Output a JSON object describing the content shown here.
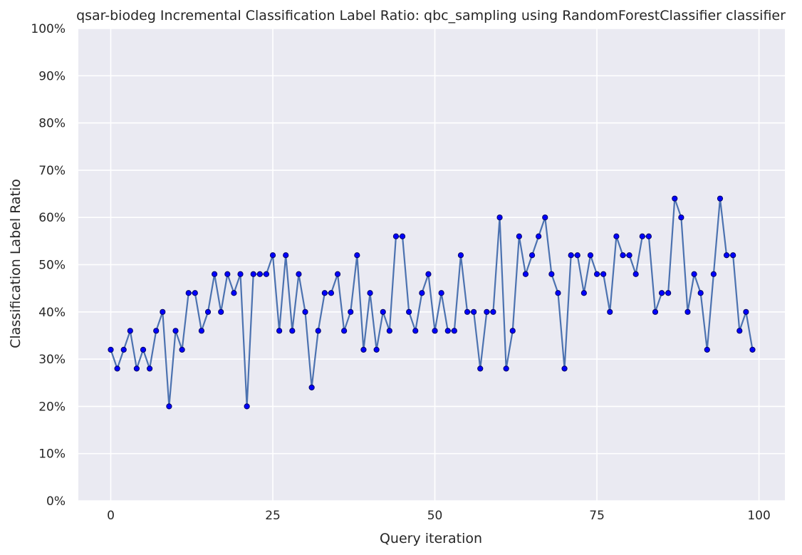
{
  "chart_data": {
    "type": "line",
    "title": "qsar-biodeg Incremental Classification Label Ratio: qbc_sampling using RandomForestClassifier classifier",
    "xlabel": "Query iteration",
    "ylabel": "Classification Label Ratio",
    "xlim": [
      -5,
      104
    ],
    "ylim": [
      0,
      100
    ],
    "x_ticks": [
      0,
      25,
      50,
      75,
      100
    ],
    "y_ticks": [
      0,
      10,
      20,
      30,
      40,
      50,
      60,
      70,
      80,
      90,
      100
    ],
    "y_tick_labels": [
      "0%",
      "10%",
      "20%",
      "30%",
      "40%",
      "50%",
      "60%",
      "70%",
      "80%",
      "90%",
      "100%"
    ],
    "grid": true,
    "background": "#eaeaf2",
    "series": [
      {
        "color": "#4c72b0",
        "marker_color": "#0000ff",
        "x_start": 0,
        "values": [
          32,
          28,
          32,
          36,
          28,
          32,
          28,
          36,
          40,
          20,
          36,
          32,
          44,
          44,
          36,
          40,
          48,
          40,
          48,
          44,
          48,
          20,
          48,
          48,
          48,
          52,
          36,
          52,
          36,
          48,
          40,
          24,
          36,
          44,
          44,
          48,
          36,
          40,
          52,
          32,
          44,
          32,
          40,
          36,
          56,
          56,
          40,
          36,
          44,
          48,
          36,
          44,
          36,
          36,
          52,
          40,
          40,
          28,
          40,
          40,
          60,
          28,
          36,
          56,
          48,
          52,
          56,
          60,
          48,
          44,
          28,
          52,
          52,
          44,
          52,
          48,
          48,
          40,
          56,
          52,
          52,
          48,
          56,
          56,
          40,
          44,
          44,
          64,
          60,
          40,
          48,
          44,
          32,
          48,
          64,
          52,
          52,
          36,
          40,
          32
        ]
      }
    ]
  }
}
